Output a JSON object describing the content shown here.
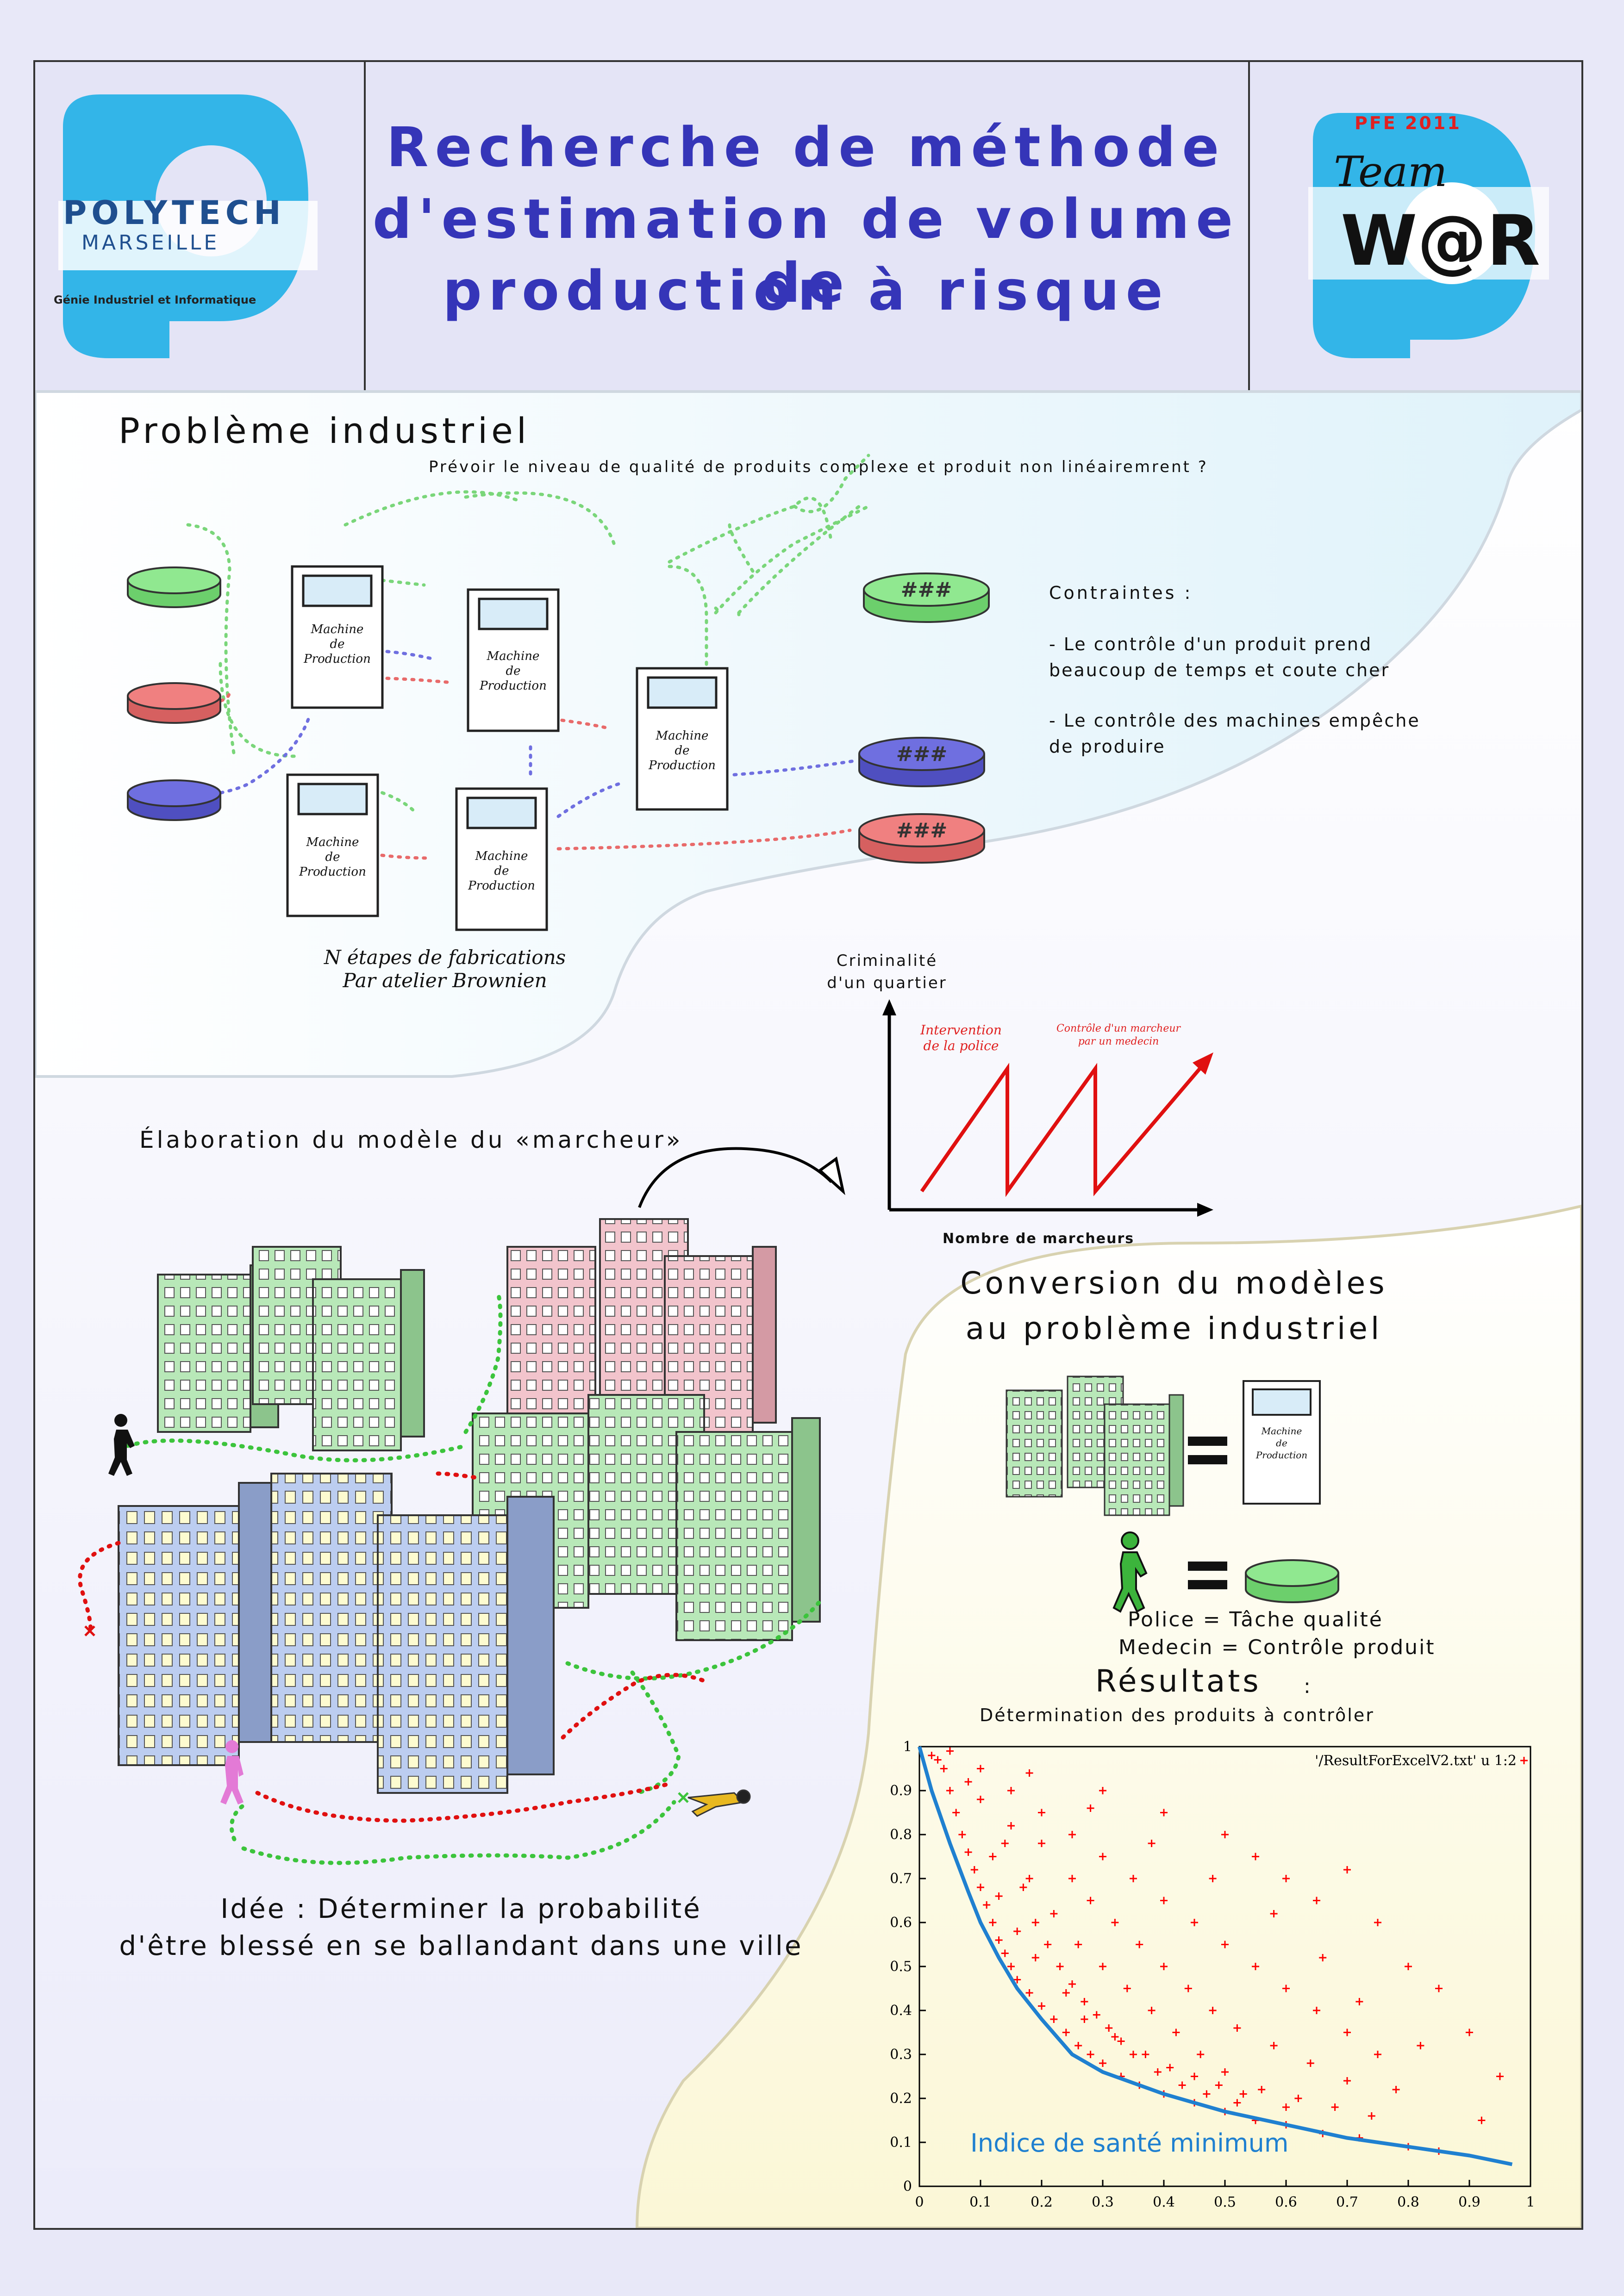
{
  "header": {
    "logo_left": {
      "name": "POLYTECH",
      "city": "MARSEILLE",
      "dept": "Génie Industriel et Informatique"
    },
    "title_lines": [
      "Recherche de méthode",
      "d'estimation de volume de",
      "production à risque"
    ],
    "logo_right": {
      "year": "PFE 2011",
      "team": "Team",
      "name": "W@R"
    }
  },
  "probleme": {
    "title": "Problème industriel",
    "subtitle": "Prévoir le niveau de qualité de produits complexe et produit non linéairemrent  ?",
    "machine_label": [
      "Machine",
      "de",
      "Production"
    ],
    "caption_lines": [
      "N étapes de fabrications",
      "Par atelier Brownien"
    ],
    "contraintes_title": "Contraintes :",
    "contraintes_1": [
      "- Le contrôle d'un produit prend",
      "beaucoup de temps et coute cher"
    ],
    "contraintes_2": [
      "- Le contrôle des machines empêche",
      "de produire"
    ]
  },
  "criminalite": {
    "ylabel_lines": [
      "Criminalité",
      "d'un quartier"
    ],
    "xlabel": "Nombre de marcheurs",
    "annotation_1": [
      "Intervention",
      "de la police"
    ],
    "annotation_2": [
      "Contrôle d'un marcheur",
      "par un medecin"
    ]
  },
  "marcheur": {
    "title": "Élaboration du modèle du «marcheur»",
    "idea_lines": [
      "Idée : Déterminer la probabilité",
      "d'être blessé en se ballandant dans une ville"
    ]
  },
  "conversion": {
    "title_lines": [
      "Conversion du modèles",
      "au problème industriel"
    ],
    "line1": "Police = Tâche qualité",
    "line2": "Medecin  = Contrôle produit"
  },
  "resultats": {
    "title": "Résultats",
    "colon": ":",
    "subtitle": "Détermination des produits à contrôler",
    "legend": "'/ResultForExcelV2.txt' u 1:2",
    "curve_label": "Indice de santé minimum"
  },
  "chart_data": {
    "type": "scatter",
    "title": "",
    "xlabel": "",
    "ylabel": "",
    "xlim": [
      0,
      1
    ],
    "ylim": [
      0,
      1
    ],
    "x_ticks": [
      "0",
      "0.1",
      "0.2",
      "0.3",
      "0.4",
      "0.5",
      "0.6",
      "0.7",
      "0.8",
      "0.9",
      "1"
    ],
    "y_ticks": [
      "0",
      "0.1",
      "0.2",
      "0.3",
      "0.4",
      "0.5",
      "0.6",
      "0.7",
      "0.8",
      "0.9",
      "1"
    ],
    "series": [
      {
        "name": "'/ResultForExcelV2.txt' u 1:2",
        "style": "red plus markers",
        "points": [
          [
            0.02,
            0.98
          ],
          [
            0.04,
            0.95
          ],
          [
            0.05,
            0.9
          ],
          [
            0.06,
            0.85
          ],
          [
            0.07,
            0.8
          ],
          [
            0.08,
            0.76
          ],
          [
            0.09,
            0.72
          ],
          [
            0.1,
            0.68
          ],
          [
            0.11,
            0.64
          ],
          [
            0.12,
            0.6
          ],
          [
            0.13,
            0.56
          ],
          [
            0.14,
            0.53
          ],
          [
            0.15,
            0.5
          ],
          [
            0.16,
            0.47
          ],
          [
            0.18,
            0.44
          ],
          [
            0.2,
            0.41
          ],
          [
            0.22,
            0.38
          ],
          [
            0.24,
            0.35
          ],
          [
            0.26,
            0.32
          ],
          [
            0.28,
            0.3
          ],
          [
            0.3,
            0.28
          ],
          [
            0.33,
            0.25
          ],
          [
            0.36,
            0.23
          ],
          [
            0.4,
            0.21
          ],
          [
            0.45,
            0.19
          ],
          [
            0.5,
            0.17
          ],
          [
            0.55,
            0.15
          ],
          [
            0.6,
            0.14
          ],
          [
            0.66,
            0.12
          ],
          [
            0.72,
            0.11
          ],
          [
            0.8,
            0.09
          ],
          [
            0.85,
            0.08
          ],
          [
            0.05,
            0.99
          ],
          [
            0.1,
            0.95
          ],
          [
            0.15,
            0.9
          ],
          [
            0.2,
            0.85
          ],
          [
            0.25,
            0.8
          ],
          [
            0.3,
            0.75
          ],
          [
            0.35,
            0.7
          ],
          [
            0.4,
            0.65
          ],
          [
            0.45,
            0.6
          ],
          [
            0.5,
            0.55
          ],
          [
            0.55,
            0.5
          ],
          [
            0.6,
            0.45
          ],
          [
            0.65,
            0.4
          ],
          [
            0.7,
            0.35
          ],
          [
            0.75,
            0.3
          ],
          [
            0.12,
            0.75
          ],
          [
            0.18,
            0.7
          ],
          [
            0.22,
            0.62
          ],
          [
            0.26,
            0.55
          ],
          [
            0.3,
            0.5
          ],
          [
            0.34,
            0.45
          ],
          [
            0.38,
            0.4
          ],
          [
            0.42,
            0.35
          ],
          [
            0.46,
            0.3
          ],
          [
            0.5,
            0.26
          ],
          [
            0.56,
            0.22
          ],
          [
            0.62,
            0.2
          ],
          [
            0.68,
            0.18
          ],
          [
            0.74,
            0.16
          ],
          [
            0.15,
            0.82
          ],
          [
            0.2,
            0.78
          ],
          [
            0.25,
            0.7
          ],
          [
            0.28,
            0.65
          ],
          [
            0.32,
            0.6
          ],
          [
            0.36,
            0.55
          ],
          [
            0.4,
            0.5
          ],
          [
            0.44,
            0.45
          ],
          [
            0.48,
            0.4
          ],
          [
            0.52,
            0.36
          ],
          [
            0.58,
            0.32
          ],
          [
            0.64,
            0.28
          ],
          [
            0.7,
            0.24
          ],
          [
            0.1,
            0.88
          ],
          [
            0.14,
            0.78
          ],
          [
            0.17,
            0.68
          ],
          [
            0.19,
            0.6
          ],
          [
            0.21,
            0.55
          ],
          [
            0.23,
            0.5
          ],
          [
            0.25,
            0.46
          ],
          [
            0.27,
            0.42
          ],
          [
            0.29,
            0.39
          ],
          [
            0.31,
            0.36
          ],
          [
            0.33,
            0.33
          ],
          [
            0.37,
            0.3
          ],
          [
            0.41,
            0.27
          ],
          [
            0.45,
            0.25
          ],
          [
            0.49,
            0.23
          ],
          [
            0.53,
            0.21
          ],
          [
            0.6,
            0.18
          ],
          [
            0.3,
            0.9
          ],
          [
            0.4,
            0.85
          ],
          [
            0.5,
            0.8
          ],
          [
            0.55,
            0.75
          ],
          [
            0.6,
            0.7
          ],
          [
            0.65,
            0.65
          ],
          [
            0.7,
            0.72
          ],
          [
            0.75,
            0.6
          ],
          [
            0.8,
            0.5
          ],
          [
            0.85,
            0.45
          ],
          [
            0.9,
            0.35
          ],
          [
            0.95,
            0.25
          ],
          [
            0.92,
            0.15
          ],
          [
            0.78,
            0.22
          ],
          [
            0.82,
            0.32
          ],
          [
            0.72,
            0.42
          ],
          [
            0.66,
            0.52
          ],
          [
            0.58,
            0.62
          ],
          [
            0.48,
            0.7
          ],
          [
            0.38,
            0.78
          ],
          [
            0.28,
            0.86
          ],
          [
            0.18,
            0.94
          ],
          [
            0.08,
            0.92
          ],
          [
            0.03,
            0.97
          ],
          [
            0.13,
            0.66
          ],
          [
            0.16,
            0.58
          ],
          [
            0.19,
            0.52
          ],
          [
            0.24,
            0.44
          ],
          [
            0.27,
            0.38
          ],
          [
            0.32,
            0.34
          ],
          [
            0.35,
            0.3
          ],
          [
            0.39,
            0.26
          ],
          [
            0.43,
            0.23
          ],
          [
            0.47,
            0.21
          ],
          [
            0.52,
            0.19
          ]
        ]
      },
      {
        "name": "Indice de santé minimum",
        "style": "blue curve",
        "points": [
          [
            0,
            1
          ],
          [
            0.02,
            0.9
          ],
          [
            0.05,
            0.78
          ],
          [
            0.08,
            0.67
          ],
          [
            0.1,
            0.6
          ],
          [
            0.13,
            0.52
          ],
          [
            0.16,
            0.45
          ],
          [
            0.2,
            0.38
          ],
          [
            0.25,
            0.3
          ],
          [
            0.3,
            0.26
          ],
          [
            0.4,
            0.21
          ],
          [
            0.5,
            0.17
          ],
          [
            0.6,
            0.14
          ],
          [
            0.7,
            0.11
          ],
          [
            0.8,
            0.09
          ],
          [
            0.9,
            0.07
          ],
          [
            0.97,
            0.05
          ]
        ]
      }
    ],
    "legend_position": "top-right",
    "grid": false
  },
  "colors": {
    "title_blue": "#3535b8",
    "logo_cyan": "#33b5e8",
    "green_task": "#90e890",
    "red_task": "#f08080",
    "blue_task": "#6f6fe0",
    "scatter_red": "#ff0000",
    "curve_blue": "#1f80d0"
  },
  "icons": [
    "polytech-logo",
    "team-war-logo",
    "machine-icon",
    "disk-icon",
    "building-icon",
    "walker-icon",
    "arrow-icon",
    "equals-icon"
  ]
}
